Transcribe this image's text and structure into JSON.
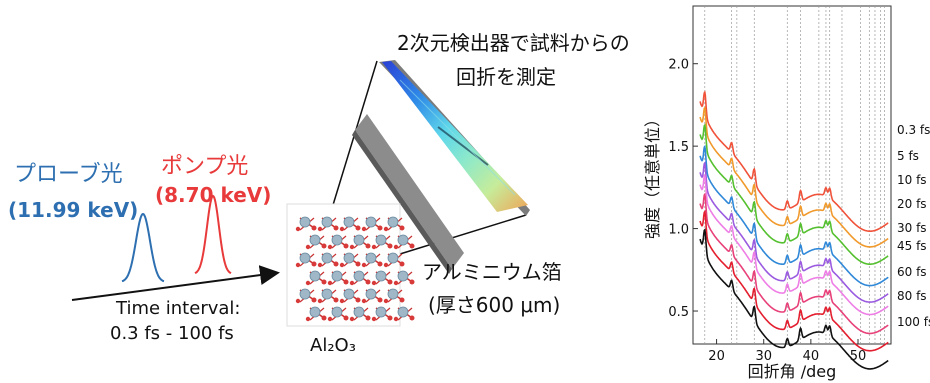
{
  "probe": {
    "label": "プローブ光",
    "energy": "(11.99 keV)",
    "color": "#2d6fb0"
  },
  "pump": {
    "label": "ポンプ光",
    "energy": "(8.70 keV)",
    "color": "#e83a3a"
  },
  "time_interval": {
    "line1": "Time interval:",
    "line2": "0.3 fs - 100 fs"
  },
  "sample": {
    "label": "Al₂O₃"
  },
  "foil": {
    "line1": "アルミニウム箔",
    "line2": "(厚さ600 μm)"
  },
  "detector": {
    "line1": "2次元検出器で試料からの",
    "line2": "回折を測定"
  },
  "chart_data": {
    "type": "line",
    "xlabel": "回折角 /deg",
    "ylabel": "強度（任意単位）",
    "xlim": [
      15,
      57
    ],
    "ylim": [
      0.3,
      2.35
    ],
    "xticks": [
      20,
      30,
      40,
      50
    ],
    "yticks": [
      0.5,
      1.0,
      1.5,
      2.0
    ],
    "ytick_labels": [
      "0.5",
      "1.0",
      "1.5",
      "2.0"
    ],
    "vertical_lines": [
      17.5,
      23.2,
      24.3,
      28.0,
      35.0,
      37.8,
      41.7,
      43.2,
      44.0,
      46.6,
      50.5,
      52.4,
      53.6,
      54.8,
      55.6
    ],
    "peaks": [
      17.5,
      23.2,
      28.0,
      35.0,
      37.8,
      43.2,
      44.0
    ],
    "series": [
      {
        "name": "0.3 fs",
        "color": "#f0523a",
        "offset": 1.595
      },
      {
        "name": "5 fs",
        "color": "#f19a2c",
        "offset": 1.5
      },
      {
        "name": "10 fs",
        "color": "#55c02f",
        "offset": 1.395
      },
      {
        "name": "20 fs",
        "color": "#2f88d8",
        "offset": 1.265
      },
      {
        "name": "30 fs",
        "color": "#9a5be0",
        "offset": 1.165
      },
      {
        "name": "45 fs",
        "color": "#ee7ee6",
        "offset": 1.09
      },
      {
        "name": "60 fs",
        "color": "#e8417a",
        "offset": 0.975
      },
      {
        "name": "80 fs",
        "color": "#e31e2e",
        "offset": 0.87
      },
      {
        "name": "100 fs",
        "color": "#111111",
        "offset": 0.76
      }
    ]
  }
}
